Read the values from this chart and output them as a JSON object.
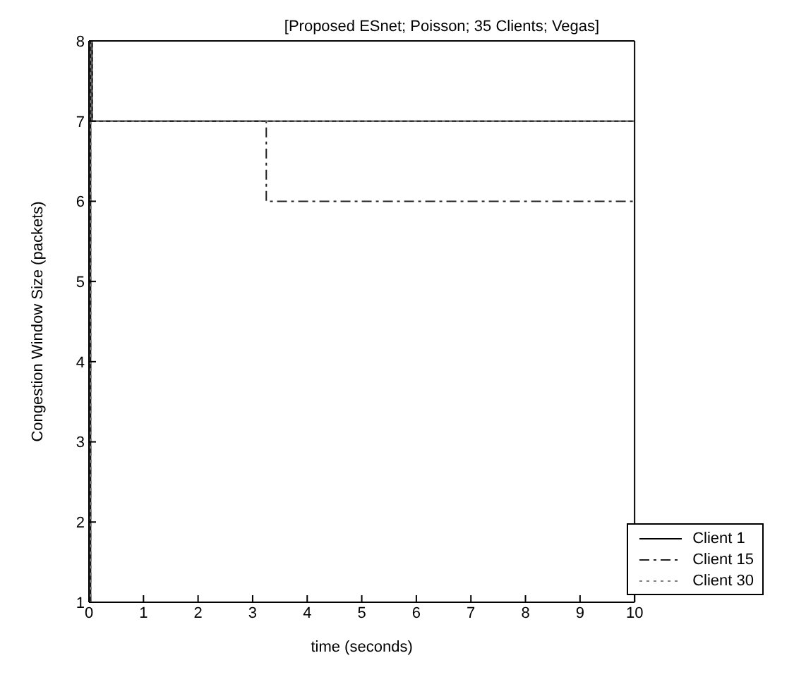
{
  "chart_data": {
    "type": "step",
    "title": "[Proposed ESnet; Poisson; 35 Clients; Vegas]",
    "xlabel": "time (seconds)",
    "ylabel": "Congestion Window Size (packets)",
    "series": [
      {
        "name": "Client 1",
        "color": "#000000",
        "line_style": "solid",
        "x": [
          0,
          0.03,
          0.06,
          10
        ],
        "values": [
          1,
          8,
          7,
          7
        ]
      },
      {
        "name": "Client 15",
        "color": "#202020",
        "line_style": "dashed",
        "x": [
          0,
          0.03,
          0.06,
          3.25,
          10
        ],
        "values": [
          1,
          8,
          7,
          6,
          6
        ]
      },
      {
        "name": "Client 30",
        "color": "#808080",
        "line_style": "dotted",
        "x": [
          0,
          0.03,
          0.06,
          10
        ],
        "values": [
          1,
          8,
          7,
          7
        ]
      }
    ],
    "xlim": [
      0,
      10
    ],
    "xticks": [
      0,
      1,
      2,
      3,
      4,
      5,
      6,
      7,
      8,
      9,
      10
    ],
    "ylim": [
      1,
      8
    ],
    "yticks": [
      1,
      2,
      3,
      4,
      5,
      6,
      7,
      8
    ],
    "grid": false,
    "legend": "bottom right",
    "marker": "none"
  }
}
